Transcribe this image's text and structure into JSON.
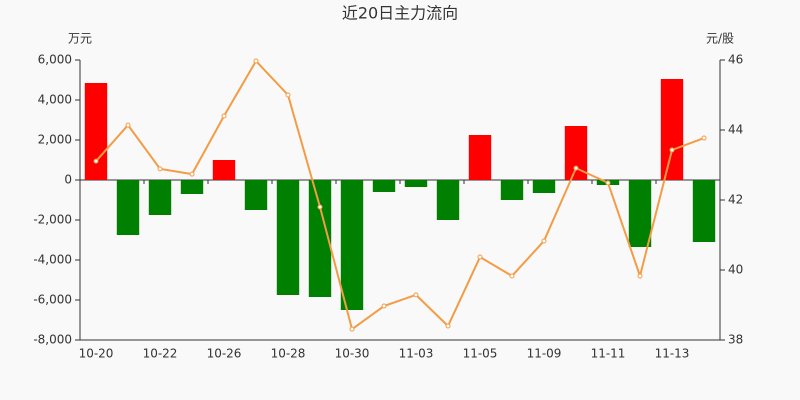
{
  "chart_data": {
    "type": "bar",
    "title": "近20日主力流向",
    "y_unit": "万元",
    "y2_unit": "元/股",
    "categories": [
      "10-20",
      null,
      "10-22",
      null,
      "10-26",
      null,
      "10-28",
      null,
      "10-30",
      null,
      "11-03",
      null,
      "11-05",
      null,
      "11-09",
      null,
      "11-11",
      null,
      "11-13",
      null
    ],
    "series": [
      {
        "type": "bar",
        "positive_color": "#ff0000",
        "negative_color": "#008000",
        "values": [
          4850,
          -2750,
          -1750,
          -700,
          1000,
          -1500,
          -5750,
          -5850,
          -6500,
          -600,
          -350,
          -2000,
          2250,
          -1000,
          -650,
          2700,
          -250,
          -3350,
          5050,
          -3100
        ]
      },
      {
        "type": "line",
        "axis": "y2",
        "color": "#f39c45",
        "values": [
          43.11,
          44.14,
          42.89,
          42.74,
          44.4,
          45.97,
          45.0,
          41.8,
          38.31,
          38.97,
          39.29,
          38.4,
          40.37,
          39.83,
          40.83,
          42.91,
          42.49,
          39.83,
          43.43,
          43.77
        ]
      }
    ],
    "ylim": [
      -8000,
      6000
    ],
    "yticks": [
      {
        "value": -8000,
        "label": "-8,000"
      },
      {
        "value": -6000,
        "label": "-6,000"
      },
      {
        "value": -4000,
        "label": "-4,000"
      },
      {
        "value": -2000,
        "label": "-2,000"
      },
      0,
      {
        "value": 2000,
        "label": "2,000"
      },
      {
        "value": 4000,
        "label": "4,000"
      },
      {
        "value": 6000,
        "label": "6,000"
      }
    ],
    "y2lim": [
      38,
      46
    ],
    "y2ticks": [
      38,
      40,
      42,
      44,
      46
    ]
  }
}
